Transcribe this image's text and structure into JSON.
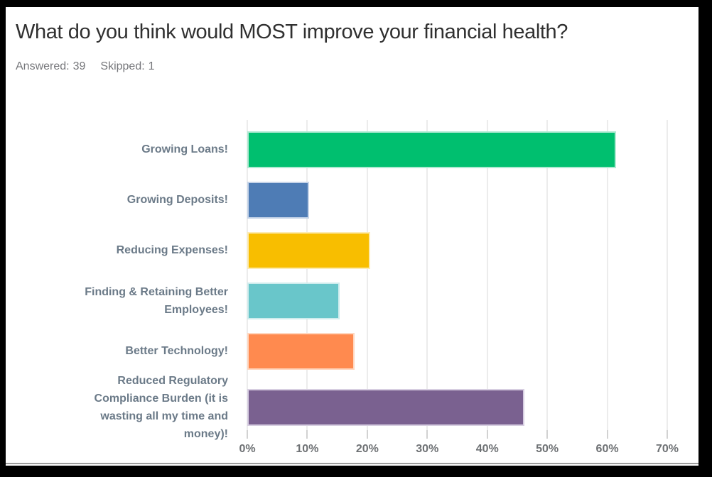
{
  "header": {
    "title": "What do you think would MOST improve your financial health?",
    "answered_label": "Answered:",
    "answered_value": "39",
    "skipped_label": "Skipped:",
    "skipped_value": "1"
  },
  "chart_data": {
    "type": "bar",
    "orientation": "horizontal",
    "title": "What do you think would MOST improve your financial health?",
    "categories": [
      "Growing Loans!",
      "Growing Deposits!",
      "Reducing Expenses!",
      "Finding & Retaining Better Employees!",
      "Better Technology!",
      "Reduced Regulatory Compliance Burden (it is wasting all my time and money)!"
    ],
    "category_lines": [
      [
        "Growing Loans!"
      ],
      [
        "Growing Deposits!"
      ],
      [
        "Reducing Expenses!"
      ],
      [
        "Finding & Retaining Better",
        "Employees!"
      ],
      [
        "Better Technology!"
      ],
      [
        "Reduced Regulatory",
        "Compliance Burden (it is",
        "wasting all my time and",
        "money)!"
      ]
    ],
    "values": [
      61.5,
      10.3,
      20.5,
      15.4,
      17.9,
      46.2
    ],
    "value_unit": "%",
    "bar_colors": [
      "#00bf6f",
      "#4e7cb5",
      "#f8be00",
      "#69c6ca",
      "#ff8a4f",
      "#7a6190"
    ],
    "bar_border_colors": [
      "#b0e9d2",
      "#c6d4e8",
      "#fcebb2",
      "#cfeced",
      "#ffd7c0",
      "#d7cee1"
    ],
    "xlabel": "",
    "ylabel": "",
    "xlim": [
      0,
      70
    ],
    "x_ticks": [
      "0%",
      "10%",
      "20%",
      "30%",
      "40%",
      "50%",
      "60%",
      "70%"
    ],
    "grid": "vertical",
    "legend": "none"
  },
  "colors": {
    "frame_border": "#000000",
    "title_text": "#303030",
    "meta_text": "#75767a",
    "category_text": "#6b7a88",
    "axis_text": "#6e7174",
    "gridline": "#ececec",
    "axis_tick": "#d2d2d2",
    "bottom_rule": "#9c9c9c"
  }
}
